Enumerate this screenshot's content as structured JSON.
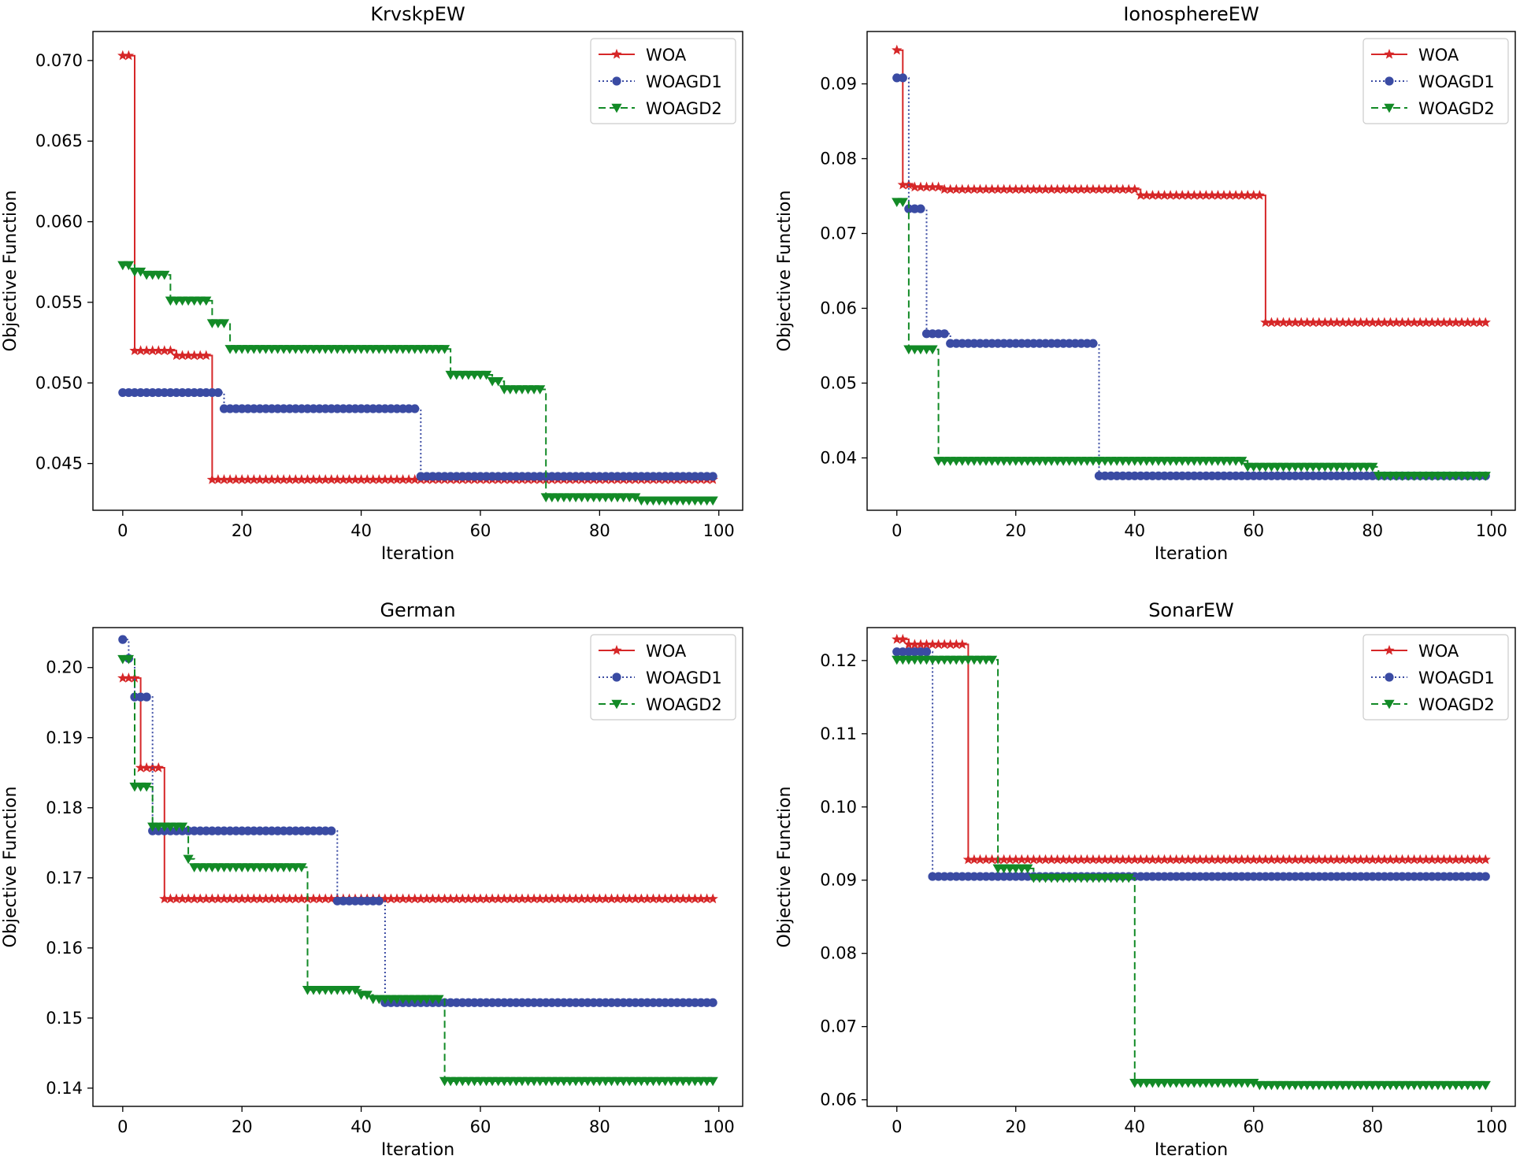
{
  "chart_data": [
    {
      "type": "line",
      "title": "KrvskpEW",
      "xlabel": "Iteration",
      "ylabel": "Objective Function",
      "xlim": [
        -5,
        104
      ],
      "ylim": [
        0.0421,
        0.0718
      ],
      "xticks": [
        0,
        20,
        40,
        60,
        80,
        100
      ],
      "yticks": [
        0.045,
        0.05,
        0.055,
        0.06,
        0.065,
        0.07
      ],
      "ytick_labels": [
        "0.045",
        "0.050",
        "0.055",
        "0.060",
        "0.065",
        "0.070"
      ],
      "legend": "top-right",
      "series": [
        {
          "name": "WOA",
          "color": "#d62728",
          "marker": "star",
          "linestyle": "solid",
          "steps": [
            [
              0,
              0.0703
            ],
            [
              2,
              0.052
            ],
            [
              9,
              0.0517
            ],
            [
              15,
              0.044
            ]
          ]
        },
        {
          "name": "WOAGD1",
          "color": "#3a4ba3",
          "marker": "circle",
          "linestyle": "dotted",
          "steps": [
            [
              0,
              0.0494
            ],
            [
              17,
              0.0484
            ],
            [
              50,
              0.0442
            ]
          ]
        },
        {
          "name": "WOAGD2",
          "color": "#128a26",
          "marker": "triangle-down",
          "linestyle": "dashed",
          "steps": [
            [
              0,
              0.0573
            ],
            [
              2,
              0.0569
            ],
            [
              4,
              0.0567
            ],
            [
              8,
              0.0551
            ],
            [
              15,
              0.0537
            ],
            [
              18,
              0.0521
            ],
            [
              55,
              0.0505
            ],
            [
              62,
              0.0501
            ],
            [
              64,
              0.0496
            ],
            [
              71,
              0.0429
            ],
            [
              87,
              0.0427
            ]
          ]
        }
      ]
    },
    {
      "type": "line",
      "title": "IonosphereEW",
      "xlabel": "Iteration",
      "ylabel": "Objective Function",
      "xlim": [
        -5,
        104
      ],
      "ylim": [
        0.033,
        0.097
      ],
      "xticks": [
        0,
        20,
        40,
        60,
        80,
        100
      ],
      "yticks": [
        0.04,
        0.05,
        0.06,
        0.07,
        0.08,
        0.09
      ],
      "ytick_labels": [
        "0.04",
        "0.05",
        "0.06",
        "0.07",
        "0.08",
        "0.09"
      ],
      "legend": "top-right",
      "series": [
        {
          "name": "WOA",
          "color": "#d62728",
          "marker": "star",
          "linestyle": "solid",
          "steps": [
            [
              0,
              0.0945
            ],
            [
              1,
              0.0765
            ],
            [
              3,
              0.0762
            ],
            [
              8,
              0.0759
            ],
            [
              41,
              0.0751
            ],
            [
              62,
              0.0581
            ]
          ]
        },
        {
          "name": "WOAGD1",
          "color": "#3a4ba3",
          "marker": "circle",
          "linestyle": "dotted",
          "steps": [
            [
              0,
              0.0908
            ],
            [
              2,
              0.0733
            ],
            [
              5,
              0.0566
            ],
            [
              9,
              0.0553
            ],
            [
              34,
              0.0376
            ]
          ]
        },
        {
          "name": "WOAGD2",
          "color": "#128a26",
          "marker": "triangle-down",
          "linestyle": "dashed",
          "steps": [
            [
              0,
              0.0742
            ],
            [
              2,
              0.0545
            ],
            [
              7,
              0.0396
            ],
            [
              59,
              0.0388
            ],
            [
              81,
              0.0376
            ]
          ]
        }
      ]
    },
    {
      "type": "line",
      "title": "German",
      "xlabel": "Iteration",
      "ylabel": "Objective Function",
      "xlim": [
        -5,
        104
      ],
      "ylim": [
        0.1374,
        0.2057
      ],
      "xticks": [
        0,
        20,
        40,
        60,
        80,
        100
      ],
      "yticks": [
        0.14,
        0.15,
        0.16,
        0.17,
        0.18,
        0.19,
        0.2
      ],
      "ytick_labels": [
        "0.14",
        "0.15",
        "0.16",
        "0.17",
        "0.18",
        "0.19",
        "0.20"
      ],
      "legend": "top-right",
      "series": [
        {
          "name": "WOA",
          "color": "#d62728",
          "marker": "star",
          "linestyle": "solid",
          "steps": [
            [
              0,
              0.1985
            ],
            [
              3,
              0.1857
            ],
            [
              7,
              0.167
            ]
          ]
        },
        {
          "name": "WOAGD1",
          "color": "#3a4ba3",
          "marker": "circle",
          "linestyle": "dotted",
          "steps": [
            [
              0,
              0.204
            ],
            [
              1,
              0.2013
            ],
            [
              2,
              0.1958
            ],
            [
              5,
              0.1767
            ],
            [
              36,
              0.1667
            ],
            [
              44,
              0.1522
            ]
          ]
        },
        {
          "name": "WOAGD2",
          "color": "#128a26",
          "marker": "triangle-down",
          "linestyle": "dashed",
          "steps": [
            [
              0,
              0.2012
            ],
            [
              2,
              0.183
            ],
            [
              5,
              0.1773
            ],
            [
              11,
              0.1727
            ],
            [
              12,
              0.1715
            ],
            [
              31,
              0.154
            ],
            [
              40,
              0.1533
            ],
            [
              42,
              0.1527
            ],
            [
              54,
              0.141
            ]
          ]
        }
      ]
    },
    {
      "type": "line",
      "title": "SonarEW",
      "xlabel": "Iteration",
      "ylabel": "Objective Function",
      "xlim": [
        -5,
        104
      ],
      "ylim": [
        0.0591,
        0.1245
      ],
      "xticks": [
        0,
        20,
        40,
        60,
        80,
        100
      ],
      "yticks": [
        0.06,
        0.07,
        0.08,
        0.09,
        0.1,
        0.11,
        0.12
      ],
      "ytick_labels": [
        "0.06",
        "0.07",
        "0.08",
        "0.09",
        "0.10",
        "0.11",
        "0.12"
      ],
      "legend": "top-right",
      "series": [
        {
          "name": "WOA",
          "color": "#d62728",
          "marker": "star",
          "linestyle": "solid",
          "steps": [
            [
              0,
              0.1229
            ],
            [
              2,
              0.1222
            ],
            [
              12,
              0.0928
            ]
          ]
        },
        {
          "name": "WOAGD1",
          "color": "#3a4ba3",
          "marker": "circle",
          "linestyle": "dotted",
          "steps": [
            [
              0,
              0.1212
            ],
            [
              6,
              0.0905
            ]
          ]
        },
        {
          "name": "WOAGD2",
          "color": "#128a26",
          "marker": "triangle-down",
          "linestyle": "dashed",
          "steps": [
            [
              0,
              0.1201
            ],
            [
              17,
              0.0916
            ],
            [
              23,
              0.0903
            ],
            [
              40,
              0.0623
            ],
            [
              61,
              0.062
            ]
          ]
        }
      ]
    }
  ]
}
